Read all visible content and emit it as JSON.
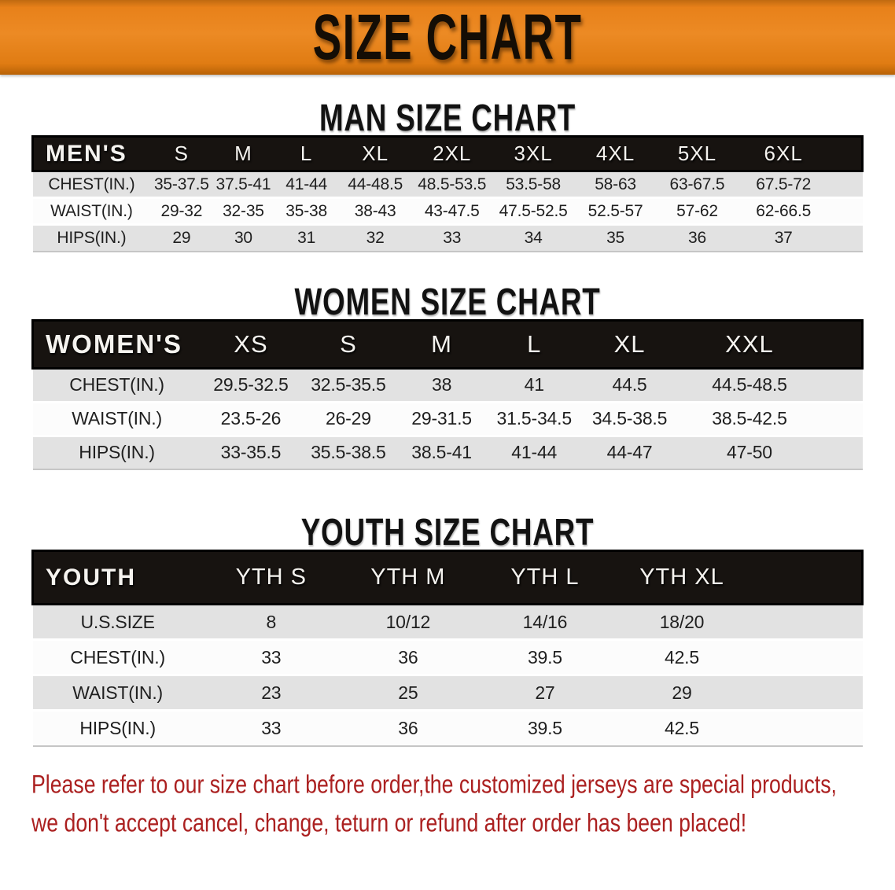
{
  "colors": {
    "accent_orange": "#e8811a",
    "header_black": "#171310",
    "row_gray": "#e2e2e2",
    "disclaimer_red": "#ab2020"
  },
  "banner": {
    "title": "SIZE CHART"
  },
  "sections": {
    "men": {
      "title": "MAN SIZE CHART",
      "table": {
        "header": [
          "MEN'S",
          "S",
          "M",
          "L",
          "XL",
          "2XL",
          "3XL",
          "4XL",
          "5XL",
          "6XL"
        ],
        "rows": [
          {
            "label": "CHEST(IN.)",
            "values": [
              "35-37.5",
              "37.5-41",
              "41-44",
              "44-48.5",
              "48.5-53.5",
              "53.5-58",
              "58-63",
              "63-67.5",
              "67.5-72"
            ]
          },
          {
            "label": "WAIST(IN.)",
            "values": [
              "29-32",
              "32-35",
              "35-38",
              "38-43",
              "43-47.5",
              "47.5-52.5",
              "52.5-57",
              "57-62",
              "62-66.5"
            ]
          },
          {
            "label": "HIPS(IN.)",
            "values": [
              "29",
              "30",
              "31",
              "32",
              "33",
              "34",
              "35",
              "36",
              "37"
            ]
          }
        ]
      }
    },
    "women": {
      "title": "WOMEN SIZE CHART",
      "table": {
        "header": [
          "WOMEN'S",
          "XS",
          "S",
          "M",
          "L",
          "XL",
          "XXL"
        ],
        "rows": [
          {
            "label": "CHEST(IN.)",
            "values": [
              "29.5-32.5",
              "32.5-35.5",
              "38",
              "41",
              "44.5",
              "44.5-48.5"
            ]
          },
          {
            "label": "WAIST(IN.)",
            "values": [
              "23.5-26",
              "26-29",
              "29-31.5",
              "31.5-34.5",
              "34.5-38.5",
              "38.5-42.5"
            ]
          },
          {
            "label": "HIPS(IN.)",
            "values": [
              "33-35.5",
              "35.5-38.5",
              "38.5-41",
              "41-44",
              "44-47",
              "47-50"
            ]
          }
        ]
      }
    },
    "youth": {
      "title": "YOUTH SIZE CHART",
      "table": {
        "header": [
          "YOUTH",
          "YTH S",
          "YTH M",
          "YTH L",
          "YTH XL"
        ],
        "rows": [
          {
            "label": "U.S.SIZE",
            "values": [
              "8",
              "10/12",
              "14/16",
              "18/20"
            ]
          },
          {
            "label": "CHEST(IN.)",
            "values": [
              "33",
              "36",
              "39.5",
              "42.5"
            ]
          },
          {
            "label": "WAIST(IN.)",
            "values": [
              "23",
              "25",
              "27",
              "29"
            ]
          },
          {
            "label": "HIPS(IN.)",
            "values": [
              "33",
              "36",
              "39.5",
              "42.5"
            ]
          }
        ]
      }
    }
  },
  "disclaimer": {
    "line1": "Please refer to our size chart before order,the customized jerseys are special products,",
    "line2": "we don't accept cancel, change, teturn or refund after order has been placed!"
  }
}
